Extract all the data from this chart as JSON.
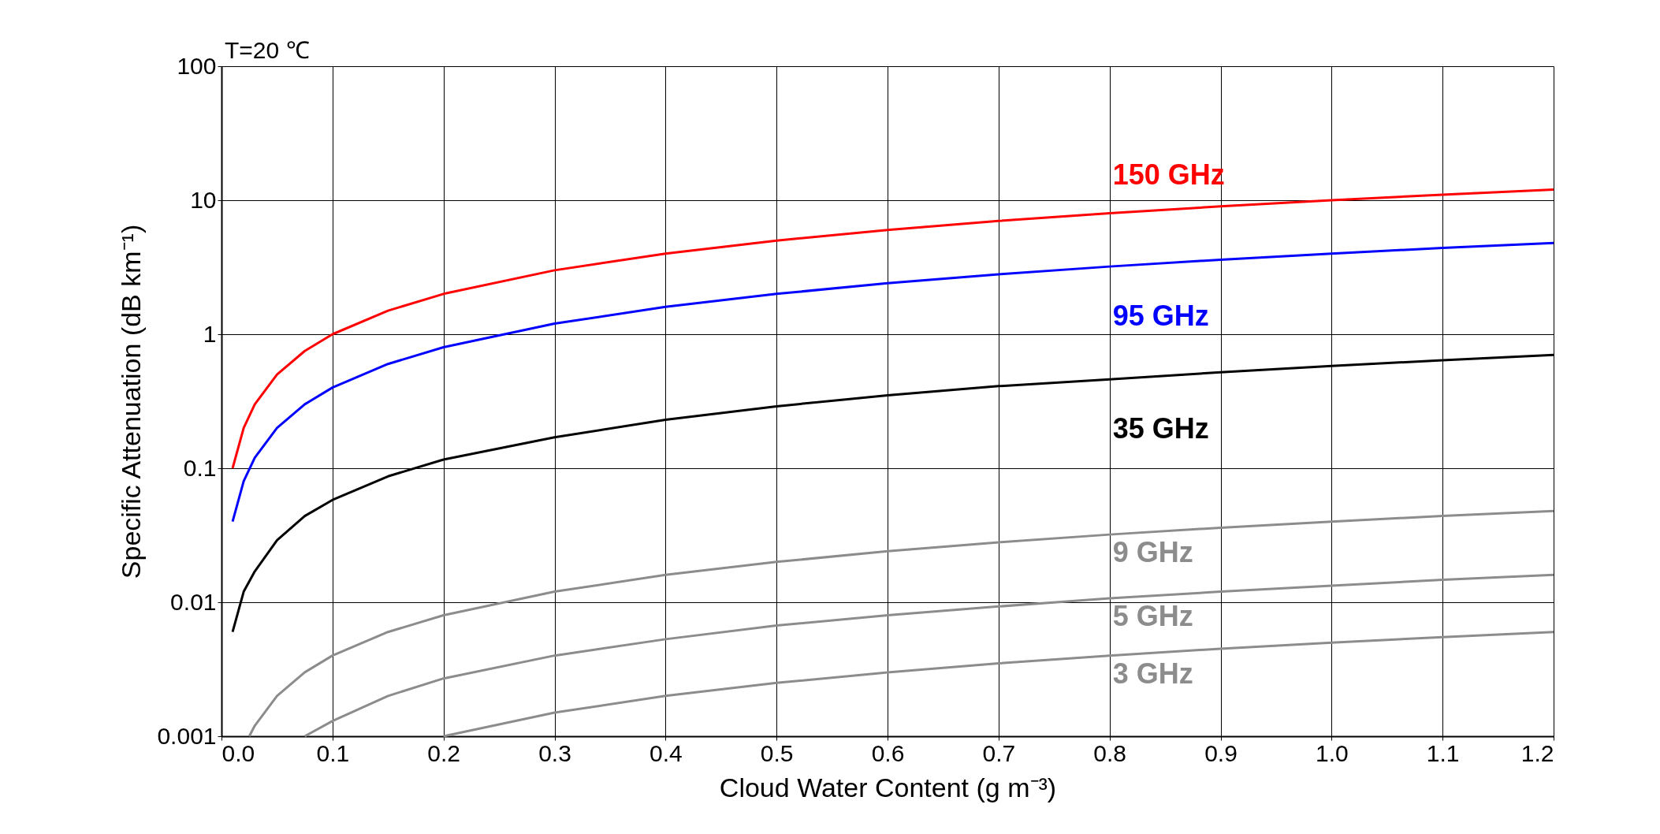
{
  "chart_data": {
    "type": "line",
    "xlabel": "Cloud Water Content (g m⁻³)",
    "ylabel": "Specific Attenuation (dB km⁻¹)",
    "annotations": [
      "T=20 ℃"
    ],
    "log": "y",
    "grid": true,
    "marker": "none",
    "line_style": "solid",
    "xlim": [
      0,
      1.2
    ],
    "ylim": [
      0.001,
      100
    ],
    "xticks": [
      {
        "value": 0,
        "label": "0.0"
      },
      0.1,
      0.2,
      0.3,
      0.4,
      0.5,
      0.6,
      0.7,
      0.8,
      0.9,
      {
        "value": 1,
        "label": "1.0"
      },
      1.1,
      1.2
    ],
    "yticks": [
      0.001,
      0.01,
      0.1,
      1,
      10,
      100
    ],
    "series": [
      {
        "name": "150 GHz",
        "color": "#ff0000",
        "x": [
          0.01,
          0.02,
          0.03,
          0.05,
          0.075,
          0.1,
          0.15,
          0.2,
          0.3,
          0.4,
          0.5,
          0.6,
          0.7,
          0.8,
          0.9,
          1.0,
          1.1,
          1.2
        ],
        "values": [
          0.1,
          0.2,
          0.3,
          0.5,
          0.75,
          1,
          1.5,
          2,
          3,
          4,
          5,
          6,
          7,
          8,
          9,
          10,
          11,
          12
        ]
      },
      {
        "name": "95 GHz",
        "color": "#0000ff",
        "x": [
          0.01,
          0.02,
          0.03,
          0.05,
          0.075,
          0.1,
          0.15,
          0.2,
          0.3,
          0.4,
          0.5,
          0.6,
          0.7,
          0.8,
          0.9,
          1.0,
          1.1,
          1.2
        ],
        "values": [
          0.04,
          0.08,
          0.12,
          0.2,
          0.3,
          0.4,
          0.6,
          0.8,
          1.2,
          1.6,
          2,
          2.4,
          2.8,
          3.2,
          3.6,
          4,
          4.4,
          4.8
        ]
      },
      {
        "name": "35 GHz",
        "color": "#000000",
        "x": [
          0.01,
          0.02,
          0.03,
          0.05,
          0.075,
          0.1,
          0.15,
          0.2,
          0.3,
          0.4,
          0.5,
          0.6,
          0.7,
          0.8,
          0.9,
          1.0,
          1.1,
          1.2
        ],
        "values": [
          0.006,
          0.012,
          0.017,
          0.029,
          0.044,
          0.058,
          0.087,
          0.116,
          0.17,
          0.23,
          0.29,
          0.35,
          0.41,
          0.46,
          0.52,
          0.58,
          0.64,
          0.7
        ]
      },
      {
        "name": "9 GHz",
        "color": "#8c8c8c",
        "x": [
          0.025,
          0.03,
          0.05,
          0.075,
          0.1,
          0.15,
          0.2,
          0.3,
          0.4,
          0.5,
          0.6,
          0.7,
          0.8,
          0.9,
          1.0,
          1.1,
          1.2
        ],
        "values": [
          0.001,
          0.0012,
          0.002,
          0.003,
          0.004,
          0.006,
          0.008,
          0.012,
          0.016,
          0.02,
          0.024,
          0.028,
          0.032,
          0.036,
          0.04,
          0.044,
          0.048
        ]
      },
      {
        "name": "5 GHz",
        "color": "#8c8c8c",
        "x": [
          0.075,
          0.1,
          0.15,
          0.2,
          0.3,
          0.4,
          0.5,
          0.6,
          0.7,
          0.8,
          0.9,
          1.0,
          1.1,
          1.2
        ],
        "values": [
          0.001,
          0.0013,
          0.002,
          0.0027,
          0.004,
          0.0053,
          0.0067,
          0.008,
          0.0093,
          0.0107,
          0.012,
          0.0133,
          0.0147,
          0.016
        ]
      },
      {
        "name": "3 GHz",
        "color": "#8c8c8c",
        "x": [
          0.2,
          0.3,
          0.4,
          0.5,
          0.6,
          0.7,
          0.8,
          0.9,
          1.0,
          1.1,
          1.2
        ],
        "values": [
          0.001,
          0.0015,
          0.002,
          0.0025,
          0.003,
          0.0035,
          0.004,
          0.0045,
          0.005,
          0.0055,
          0.006
        ]
      }
    ]
  }
}
